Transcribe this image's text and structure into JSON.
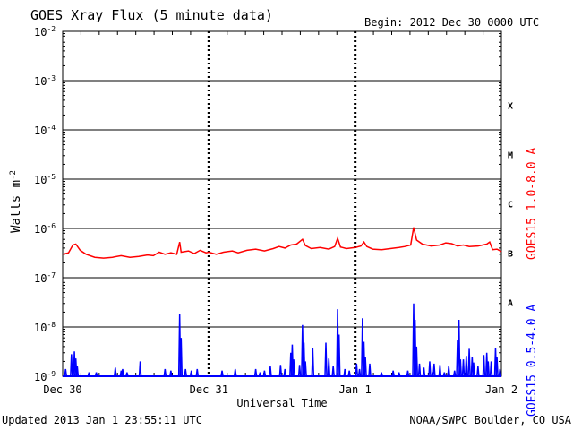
{
  "chart_data": {
    "type": "line",
    "title": "GOES Xray Flux (5 minute data)",
    "begin_label": "Begin:  2012 Dec 30 0000 UTC",
    "xlabel": "Universal Time",
    "ylabel": "Watts m",
    "ylabel_sup": "-2",
    "x_range_days": [
      0,
      3
    ],
    "x_ticks": [
      {
        "day": 0,
        "label": "Dec 30"
      },
      {
        "day": 1,
        "label": "Dec 31"
      },
      {
        "day": 2,
        "label": "Jan 1"
      },
      {
        "day": 3,
        "label": "Jan 2"
      }
    ],
    "y_scale": "log",
    "y_range": [
      1e-09,
      0.01
    ],
    "y_ticks": [
      {
        "exp": -2,
        "label": "10",
        "sup": "-2"
      },
      {
        "exp": -3,
        "label": "10",
        "sup": "-3"
      },
      {
        "exp": -4,
        "label": "10",
        "sup": "-4"
      },
      {
        "exp": -5,
        "label": "10",
        "sup": "-5"
      },
      {
        "exp": -6,
        "label": "10",
        "sup": "-6"
      },
      {
        "exp": -7,
        "label": "10",
        "sup": "-7"
      },
      {
        "exp": -8,
        "label": "10",
        "sup": "-8"
      },
      {
        "exp": -9,
        "label": "10",
        "sup": "-9"
      }
    ],
    "flare_classes": [
      {
        "label": "X",
        "exp": -3.5
      },
      {
        "label": "M",
        "exp": -4.5
      },
      {
        "label": "C",
        "exp": -5.5
      },
      {
        "label": "B",
        "exp": -6.5
      },
      {
        "label": "A",
        "exp": -7.5
      }
    ],
    "series": [
      {
        "name": "GOES15 1.0-8.0 A",
        "color": "#ff0000",
        "points": [
          [
            0.0,
            3e-07
          ],
          [
            0.04,
            3.2e-07
          ],
          [
            0.07,
            4.6e-07
          ],
          [
            0.09,
            4.8e-07
          ],
          [
            0.12,
            3.6e-07
          ],
          [
            0.16,
            3e-07
          ],
          [
            0.22,
            2.6e-07
          ],
          [
            0.28,
            2.5e-07
          ],
          [
            0.34,
            2.6e-07
          ],
          [
            0.4,
            2.8e-07
          ],
          [
            0.46,
            2.6e-07
          ],
          [
            0.52,
            2.7e-07
          ],
          [
            0.58,
            2.9e-07
          ],
          [
            0.62,
            2.8e-07
          ],
          [
            0.66,
            3.3e-07
          ],
          [
            0.7,
            3e-07
          ],
          [
            0.74,
            3.2e-07
          ],
          [
            0.78,
            3e-07
          ],
          [
            0.8,
            5.3e-07
          ],
          [
            0.81,
            3.3e-07
          ],
          [
            0.86,
            3.5e-07
          ],
          [
            0.9,
            3.1e-07
          ],
          [
            0.94,
            3.6e-07
          ],
          [
            0.98,
            3.2e-07
          ],
          [
            1.0,
            3.3e-07
          ],
          [
            1.05,
            3e-07
          ],
          [
            1.1,
            3.3e-07
          ],
          [
            1.16,
            3.5e-07
          ],
          [
            1.2,
            3.2e-07
          ],
          [
            1.26,
            3.6e-07
          ],
          [
            1.32,
            3.8e-07
          ],
          [
            1.38,
            3.5e-07
          ],
          [
            1.44,
            3.9e-07
          ],
          [
            1.48,
            4.3e-07
          ],
          [
            1.52,
            4e-07
          ],
          [
            1.56,
            4.6e-07
          ],
          [
            1.6,
            4.8e-07
          ],
          [
            1.64,
            6e-07
          ],
          [
            1.66,
            4.5e-07
          ],
          [
            1.7,
            3.9e-07
          ],
          [
            1.76,
            4.1e-07
          ],
          [
            1.82,
            3.8e-07
          ],
          [
            1.86,
            4.3e-07
          ],
          [
            1.88,
            6.3e-07
          ],
          [
            1.9,
            4.2e-07
          ],
          [
            1.94,
            3.9e-07
          ],
          [
            2.0,
            4.1e-07
          ],
          [
            2.04,
            4.4e-07
          ],
          [
            2.06,
            5.3e-07
          ],
          [
            2.08,
            4.3e-07
          ],
          [
            2.12,
            3.8e-07
          ],
          [
            2.18,
            3.7e-07
          ],
          [
            2.24,
            3.9e-07
          ],
          [
            2.3,
            4.1e-07
          ],
          [
            2.34,
            4.3e-07
          ],
          [
            2.38,
            4.6e-07
          ],
          [
            2.4,
            1.05e-06
          ],
          [
            2.42,
            5.8e-07
          ],
          [
            2.46,
            4.8e-07
          ],
          [
            2.52,
            4.4e-07
          ],
          [
            2.58,
            4.6e-07
          ],
          [
            2.62,
            5.1e-07
          ],
          [
            2.66,
            4.9e-07
          ],
          [
            2.7,
            4.4e-07
          ],
          [
            2.74,
            4.6e-07
          ],
          [
            2.78,
            4.3e-07
          ],
          [
            2.84,
            4.4e-07
          ],
          [
            2.9,
            4.8e-07
          ],
          [
            2.92,
            5.3e-07
          ],
          [
            2.94,
            3.7e-07
          ],
          [
            2.97,
            3.8e-07
          ],
          [
            3.0,
            3.4e-07
          ]
        ]
      },
      {
        "name": "GOES15 0.5-4.0 A",
        "color": "#0000ff",
        "baseline": 1e-09,
        "spikes": [
          [
            0.02,
            1.4e-09
          ],
          [
            0.06,
            2.8e-09
          ],
          [
            0.08,
            3.2e-09
          ],
          [
            0.09,
            2.3e-09
          ],
          [
            0.1,
            1.6e-09
          ],
          [
            0.18,
            1.2e-09
          ],
          [
            0.23,
            1.2e-09
          ],
          [
            0.36,
            1.5e-09
          ],
          [
            0.4,
            1.3e-09
          ],
          [
            0.41,
            1.4e-09
          ],
          [
            0.44,
            1.2e-09
          ],
          [
            0.53,
            2e-09
          ],
          [
            0.7,
            1.4e-09
          ],
          [
            0.74,
            1.3e-09
          ],
          [
            0.8,
            1.8e-08
          ],
          [
            0.81,
            6e-09
          ],
          [
            0.84,
            1.4e-09
          ],
          [
            0.88,
            1.3e-09
          ],
          [
            0.92,
            1.4e-09
          ],
          [
            1.09,
            1.3e-09
          ],
          [
            1.18,
            1.4e-09
          ],
          [
            1.32,
            1.4e-09
          ],
          [
            1.35,
            1.2e-09
          ],
          [
            1.38,
            1.3e-09
          ],
          [
            1.42,
            1.6e-09
          ],
          [
            1.49,
            1.7e-09
          ],
          [
            1.52,
            1.4e-09
          ],
          [
            1.56,
            3e-09
          ],
          [
            1.57,
            4.4e-09
          ],
          [
            1.58,
            2.2e-09
          ],
          [
            1.62,
            1.7e-09
          ],
          [
            1.64,
            1.1e-08
          ],
          [
            1.65,
            4.8e-09
          ],
          [
            1.66,
            2e-09
          ],
          [
            1.71,
            3.8e-09
          ],
          [
            1.8,
            4.8e-09
          ],
          [
            1.82,
            2.3e-09
          ],
          [
            1.85,
            1.6e-09
          ],
          [
            1.88,
            2.3e-08
          ],
          [
            1.89,
            7e-09
          ],
          [
            1.93,
            1.4e-09
          ],
          [
            1.96,
            1.3e-09
          ],
          [
            2.01,
            1.8e-09
          ],
          [
            2.03,
            1.4e-09
          ],
          [
            2.05,
            1.5e-08
          ],
          [
            2.06,
            5e-09
          ],
          [
            2.07,
            2.5e-09
          ],
          [
            2.1,
            1.8e-09
          ],
          [
            2.18,
            1.2e-09
          ],
          [
            2.26,
            1.3e-09
          ],
          [
            2.3,
            1.2e-09
          ],
          [
            2.36,
            1.3e-09
          ],
          [
            2.4,
            3e-08
          ],
          [
            2.41,
            1.4e-08
          ],
          [
            2.42,
            4e-09
          ],
          [
            2.44,
            1.8e-09
          ],
          [
            2.47,
            1.5e-09
          ],
          [
            2.51,
            2e-09
          ],
          [
            2.53,
            1.2e-09
          ],
          [
            2.54,
            1.8e-09
          ],
          [
            2.58,
            1.7e-09
          ],
          [
            2.61,
            1.2e-09
          ],
          [
            2.64,
            1.6e-09
          ],
          [
            2.68,
            1.3e-09
          ],
          [
            2.7,
            5.5e-09
          ],
          [
            2.71,
            1.4e-08
          ],
          [
            2.72,
            2.2e-09
          ],
          [
            2.74,
            2.2e-09
          ],
          [
            2.76,
            2.6e-09
          ],
          [
            2.78,
            3.6e-09
          ],
          [
            2.8,
            2.5e-09
          ],
          [
            2.81,
            1.9e-09
          ],
          [
            2.84,
            1.6e-09
          ],
          [
            2.88,
            2.7e-09
          ],
          [
            2.9,
            3e-09
          ],
          [
            2.91,
            2e-09
          ],
          [
            2.93,
            2e-09
          ],
          [
            2.96,
            3.8e-09
          ],
          [
            2.97,
            2.4e-09
          ],
          [
            2.99,
            1.4e-09
          ]
        ]
      }
    ],
    "grid": true
  },
  "footer": {
    "updated": "Updated 2013 Jan  1 23:55:11 UTC",
    "source": "NOAA/SWPC Boulder, CO USA"
  }
}
